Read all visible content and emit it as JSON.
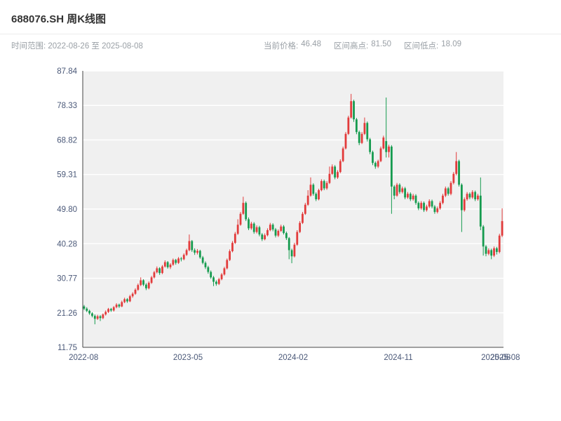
{
  "header": {
    "title": "688076.SH 周K线图",
    "subtitle_left": "时间范围: 2022-08-26 至 2025-08-08",
    "info": {
      "current_label": "当前价格:",
      "current_value": "46.48",
      "high_label": "区间高点:",
      "high_value": "81.50",
      "low_label": "区间低点:",
      "low_value": "18.09"
    }
  },
  "chart_data": {
    "type": "candlestick",
    "title": "688076.SH 周K线图",
    "symbol": "688076.SH",
    "frequency": "weekly",
    "date_range": [
      "2022-08-26",
      "2025-08-08"
    ],
    "current_price": 46.48,
    "range_high": 81.5,
    "range_low": 18.09,
    "ylim": [
      11.75,
      87.84
    ],
    "y_ticks": [
      87.84,
      78.33,
      68.82,
      59.31,
      49.8,
      40.28,
      30.77,
      21.26,
      11.75
    ],
    "x_ticks": [
      "2022-08",
      "2023-05",
      "2024-02",
      "2024-11",
      "2025-08"
    ],
    "x_tick_positions": [
      0.002,
      0.25,
      0.5,
      0.75,
      0.982
    ],
    "x_end_label": "2025-08",
    "x_end_position": 1.004,
    "grid": true,
    "legend": "none",
    "colors": {
      "up": "#e23b3b",
      "down": "#169b4f",
      "plot_bg": "#f0f0f0",
      "grid": "#ffffff",
      "spine": "#444444"
    },
    "candles_format": [
      "open",
      "high",
      "low",
      "close"
    ],
    "candles": [
      [
        23.0,
        23.4,
        22.0,
        22.4
      ],
      [
        22.4,
        22.8,
        21.4,
        21.8
      ],
      [
        21.8,
        22.1,
        20.7,
        21.1
      ],
      [
        21.1,
        21.4,
        20.0,
        20.4
      ],
      [
        20.4,
        20.8,
        18.09,
        19.6
      ],
      [
        19.6,
        20.7,
        19.3,
        20.3
      ],
      [
        20.3,
        20.6,
        19.0,
        19.8
      ],
      [
        19.8,
        21.1,
        19.5,
        20.8
      ],
      [
        20.8,
        21.9,
        20.5,
        21.5
      ],
      [
        21.5,
        22.6,
        21.2,
        22.3
      ],
      [
        22.3,
        22.6,
        21.5,
        21.9
      ],
      [
        21.9,
        23.1,
        21.6,
        22.8
      ],
      [
        22.8,
        23.9,
        22.5,
        23.5
      ],
      [
        23.5,
        23.8,
        22.6,
        23.0
      ],
      [
        23.0,
        24.6,
        22.8,
        24.2
      ],
      [
        24.2,
        25.4,
        23.9,
        25.0
      ],
      [
        25.0,
        25.3,
        24.0,
        24.4
      ],
      [
        24.4,
        26.2,
        24.2,
        25.8
      ],
      [
        25.8,
        26.9,
        25.4,
        26.5
      ],
      [
        26.5,
        28.0,
        26.2,
        27.6
      ],
      [
        27.6,
        29.3,
        27.3,
        28.9
      ],
      [
        28.9,
        31.0,
        28.6,
        30.2
      ],
      [
        30.2,
        30.5,
        28.6,
        29.0
      ],
      [
        29.0,
        29.4,
        27.5,
        28.0
      ],
      [
        28.0,
        29.9,
        27.7,
        29.5
      ],
      [
        29.5,
        31.4,
        29.2,
        31.0
      ],
      [
        31.0,
        32.8,
        30.7,
        32.4
      ],
      [
        32.4,
        34.0,
        32.1,
        33.5
      ],
      [
        33.5,
        33.8,
        31.7,
        32.2
      ],
      [
        32.2,
        34.4,
        31.9,
        34.0
      ],
      [
        34.0,
        35.7,
        33.7,
        35.2
      ],
      [
        35.2,
        35.5,
        33.4,
        33.8
      ],
      [
        33.8,
        34.9,
        33.3,
        34.5
      ],
      [
        34.5,
        36.2,
        34.2,
        35.8
      ],
      [
        35.8,
        36.1,
        34.5,
        35.0
      ],
      [
        35.0,
        36.6,
        34.7,
        36.2
      ],
      [
        36.2,
        36.6,
        35.4,
        36.0
      ],
      [
        36.0,
        37.6,
        35.7,
        37.2
      ],
      [
        37.2,
        38.9,
        36.9,
        38.5
      ],
      [
        38.5,
        42.8,
        38.2,
        41.0
      ],
      [
        41.0,
        41.3,
        38.0,
        38.5
      ],
      [
        38.5,
        39.0,
        37.2,
        37.8
      ],
      [
        37.8,
        38.8,
        37.3,
        38.3
      ],
      [
        38.3,
        38.6,
        36.1,
        36.5
      ],
      [
        36.5,
        36.9,
        34.6,
        35.0
      ],
      [
        35.0,
        35.4,
        33.3,
        33.8
      ],
      [
        33.8,
        34.2,
        32.0,
        32.5
      ],
      [
        32.5,
        32.9,
        30.6,
        31.0
      ],
      [
        31.0,
        31.4,
        28.6,
        29.8
      ],
      [
        29.8,
        30.2,
        28.7,
        29.2
      ],
      [
        29.2,
        30.9,
        28.9,
        30.5
      ],
      [
        30.5,
        32.2,
        30.2,
        31.8
      ],
      [
        31.8,
        33.9,
        31.5,
        33.5
      ],
      [
        33.5,
        36.2,
        33.2,
        35.8
      ],
      [
        35.8,
        38.7,
        35.5,
        38.2
      ],
      [
        38.2,
        41.0,
        37.9,
        40.5
      ],
      [
        40.5,
        43.5,
        40.2,
        43.0
      ],
      [
        43.0,
        47.0,
        42.7,
        45.5
      ],
      [
        45.5,
        49.0,
        45.2,
        48.5
      ],
      [
        48.5,
        53.2,
        48.2,
        51.5
      ],
      [
        51.5,
        51.9,
        46.5,
        47.0
      ],
      [
        47.0,
        47.5,
        44.0,
        44.5
      ],
      [
        44.5,
        46.3,
        44.1,
        45.8
      ],
      [
        45.8,
        46.2,
        43.0,
        43.5
      ],
      [
        43.5,
        45.3,
        43.1,
        44.8
      ],
      [
        44.8,
        45.2,
        42.3,
        42.8
      ],
      [
        42.8,
        43.2,
        41.0,
        41.5
      ],
      [
        41.5,
        43.1,
        41.2,
        42.6
      ],
      [
        42.6,
        44.5,
        42.3,
        44.0
      ],
      [
        44.0,
        46.0,
        43.7,
        45.5
      ],
      [
        45.5,
        45.9,
        43.7,
        44.2
      ],
      [
        44.2,
        44.6,
        42.0,
        42.5
      ],
      [
        42.5,
        44.2,
        42.1,
        43.8
      ],
      [
        43.8,
        45.5,
        43.5,
        45.0
      ],
      [
        45.0,
        45.4,
        42.8,
        43.2
      ],
      [
        43.2,
        43.6,
        41.3,
        41.8
      ],
      [
        41.8,
        42.1,
        36.0,
        38.5
      ],
      [
        38.5,
        38.9,
        34.9,
        36.8
      ],
      [
        36.8,
        40.5,
        36.5,
        40.0
      ],
      [
        40.0,
        44.0,
        39.7,
        43.5
      ],
      [
        43.5,
        46.5,
        43.2,
        46.0
      ],
      [
        46.0,
        49.0,
        45.7,
        48.5
      ],
      [
        48.5,
        51.5,
        48.2,
        51.0
      ],
      [
        51.0,
        55.0,
        50.7,
        53.5
      ],
      [
        53.5,
        58.5,
        53.2,
        56.5
      ],
      [
        56.5,
        56.9,
        53.5,
        54.0
      ],
      [
        54.0,
        54.4,
        52.0,
        52.5
      ],
      [
        52.5,
        55.4,
        52.2,
        55.0
      ],
      [
        55.0,
        58.0,
        54.7,
        57.5
      ],
      [
        57.5,
        57.9,
        55.0,
        55.5
      ],
      [
        55.5,
        57.5,
        55.1,
        57.0
      ],
      [
        57.0,
        61.5,
        56.7,
        59.5
      ],
      [
        59.5,
        62.1,
        59.2,
        61.5
      ],
      [
        61.5,
        61.9,
        58.0,
        58.5
      ],
      [
        58.5,
        60.5,
        58.1,
        60.0
      ],
      [
        60.0,
        63.5,
        59.7,
        63.0
      ],
      [
        63.0,
        67.0,
        62.7,
        66.5
      ],
      [
        66.5,
        71.0,
        66.2,
        70.5
      ],
      [
        70.5,
        75.5,
        70.2,
        75.0
      ],
      [
        75.0,
        81.5,
        74.7,
        79.5
      ],
      [
        79.5,
        79.9,
        73.8,
        74.5
      ],
      [
        74.5,
        74.9,
        70.4,
        71.0
      ],
      [
        71.0,
        71.4,
        67.4,
        68.0
      ],
      [
        68.0,
        71.0,
        67.7,
        70.5
      ],
      [
        70.5,
        75.0,
        70.2,
        73.5
      ],
      [
        73.5,
        73.9,
        68.4,
        69.0
      ],
      [
        69.0,
        69.4,
        64.9,
        65.5
      ],
      [
        65.5,
        65.9,
        61.9,
        62.5
      ],
      [
        62.5,
        62.9,
        60.9,
        61.5
      ],
      [
        61.5,
        63.4,
        61.1,
        63.0
      ],
      [
        63.0,
        67.0,
        62.7,
        66.5
      ],
      [
        66.5,
        70.0,
        66.2,
        69.5
      ],
      [
        68.5,
        80.5,
        64.0,
        65.5
      ],
      [
        65.5,
        67.5,
        64.0,
        67.0
      ],
      [
        67.0,
        67.4,
        48.5,
        56.0
      ],
      [
        56.0,
        56.4,
        52.5,
        53.5
      ],
      [
        53.5,
        57.0,
        53.2,
        56.5
      ],
      [
        56.5,
        56.9,
        54.0,
        54.5
      ],
      [
        54.5,
        56.0,
        54.1,
        55.5
      ],
      [
        55.5,
        55.9,
        52.5,
        53.0
      ],
      [
        53.0,
        54.5,
        52.6,
        54.0
      ],
      [
        54.0,
        54.4,
        52.0,
        52.5
      ],
      [
        52.5,
        54.0,
        52.1,
        53.5
      ],
      [
        53.5,
        53.9,
        51.0,
        51.5
      ],
      [
        51.5,
        51.9,
        49.5,
        50.0
      ],
      [
        50.0,
        52.0,
        49.6,
        51.5
      ],
      [
        51.5,
        51.9,
        49.0,
        49.5
      ],
      [
        49.5,
        51.0,
        49.1,
        50.5
      ],
      [
        50.5,
        52.5,
        50.1,
        52.0
      ],
      [
        52.0,
        52.4,
        50.0,
        50.5
      ],
      [
        50.5,
        50.9,
        48.5,
        49.0
      ],
      [
        49.0,
        50.5,
        48.6,
        50.0
      ],
      [
        50.0,
        52.0,
        49.6,
        51.5
      ],
      [
        51.5,
        54.0,
        51.1,
        53.5
      ],
      [
        53.5,
        56.0,
        53.1,
        55.5
      ],
      [
        55.5,
        55.9,
        53.5,
        54.0
      ],
      [
        54.0,
        57.5,
        53.6,
        57.0
      ],
      [
        57.0,
        60.0,
        56.6,
        59.5
      ],
      [
        59.5,
        65.5,
        59.1,
        63.0
      ],
      [
        63.0,
        63.4,
        56.0,
        56.5
      ],
      [
        56.5,
        56.9,
        43.5,
        49.5
      ],
      [
        49.5,
        53.0,
        49.1,
        52.5
      ],
      [
        52.5,
        54.5,
        52.1,
        54.0
      ],
      [
        54.0,
        54.4,
        52.5,
        53.0
      ],
      [
        53.0,
        55.0,
        52.6,
        54.5
      ],
      [
        54.5,
        54.9,
        52.0,
        52.5
      ],
      [
        52.5,
        54.0,
        52.1,
        53.5
      ],
      [
        53.5,
        58.5,
        44.0,
        45.0
      ],
      [
        45.0,
        45.4,
        37.0,
        39.5
      ],
      [
        39.5,
        39.9,
        36.8,
        37.5
      ],
      [
        37.5,
        39.0,
        37.1,
        38.5
      ],
      [
        38.5,
        38.9,
        36.0,
        37.0
      ],
      [
        37.0,
        39.5,
        36.6,
        39.0
      ],
      [
        39.0,
        39.4,
        37.3,
        38.0
      ],
      [
        38.0,
        43.0,
        37.6,
        42.5
      ],
      [
        42.5,
        50.0,
        42.1,
        46.48
      ]
    ]
  }
}
